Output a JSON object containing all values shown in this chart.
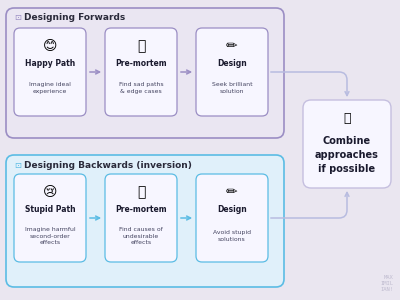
{
  "bg_color": "#eae6f0",
  "forward_box_bg": "#eae6f2",
  "forward_box_border": "#9b8ec4",
  "backward_box_bg": "#e0f0fa",
  "backward_box_border": "#5bbce4",
  "card_bg": "#f7f6ff",
  "card_border_forward": "#9b8ec4",
  "card_border_backward": "#5bbce4",
  "combine_box_bg": "#f7f6ff",
  "combine_box_border": "#c5bfdf",
  "arrow_color_forward": "#9b8ec4",
  "arrow_color_backward": "#5bbce4",
  "arrow_color_combine": "#b8bce0",
  "title_forward": "Designing Forwards",
  "title_backward": "Designing Backwards (inversion)",
  "combine_title": "Combine\napproaches\nif possible",
  "flow1": [
    {
      "title": "Happy Path",
      "sub": "Imagine ideal\nexperience",
      "emoji": "😊"
    },
    {
      "title": "Pre-mortem",
      "sub": "Find sad paths\n& edge cases",
      "emoji": "🤔"
    },
    {
      "title": "Design",
      "sub": "Seek brilliant\nsolution",
      "emoji": "✏️"
    }
  ],
  "flow2": [
    {
      "title": "Stupid Path",
      "sub": "Imagine harmful\nsecond-order\neffects",
      "emoji": "😢"
    },
    {
      "title": "Pre-mortem",
      "sub": "Find causes of\nundesirable\neffects",
      "emoji": "🤔"
    },
    {
      "title": "Design",
      "sub": "Avoid stupid\nsolutions",
      "emoji": "✏️"
    }
  ],
  "watermark": "MAX\nIMIL\nIAN!",
  "title_fontsize": 6.5,
  "card_title_fontsize": 5.5,
  "card_sub_fontsize": 4.4,
  "combine_fontsize": 7.0,
  "combine_emoji": "🔄"
}
